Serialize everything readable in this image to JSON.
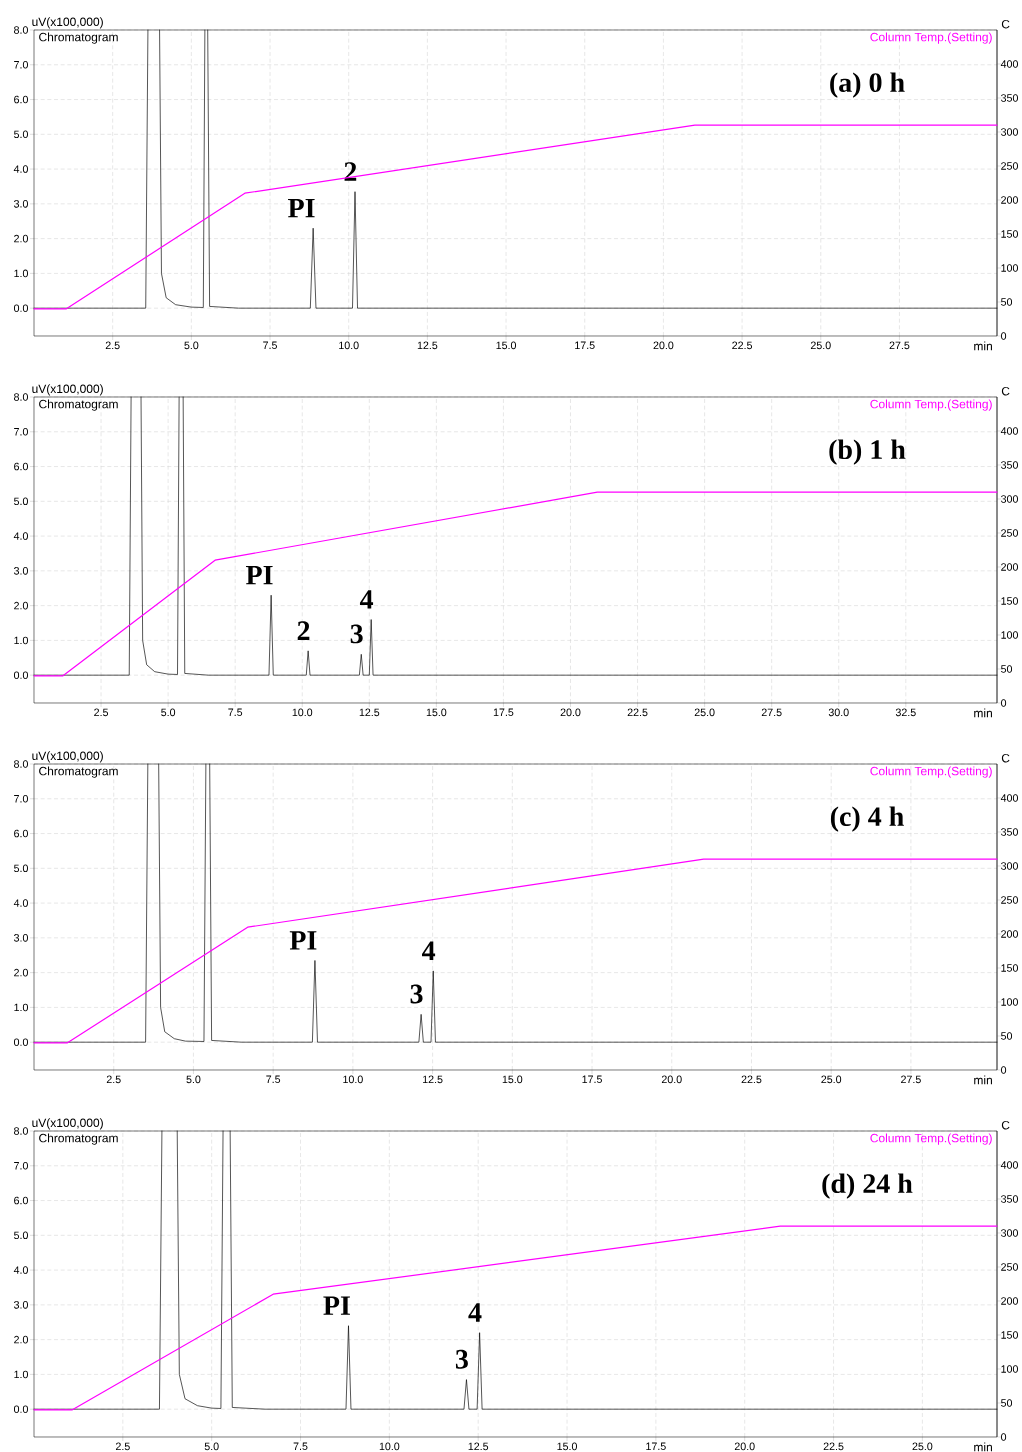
{
  "chart_data": [
    {
      "type": "line",
      "ylabel": "uV(x100,000)",
      "y2label": "C",
      "xlabel": "min",
      "annotations": [
        "(a) 0 h",
        {
          "text": "PI",
          "x": 8.87,
          "y": 2.3
        },
        {
          "text": "2",
          "x": 10.2,
          "y": 3.35
        }
      ],
      "xlim": [
        0,
        30.6
      ],
      "ylim": [
        -0.8,
        8.0
      ],
      "y2lim": [
        0,
        450
      ],
      "grid": true,
      "xticks": [
        2.5,
        {
          "value": 5,
          "label": "5.0"
        },
        7.5,
        {
          "value": 10,
          "label": "10.0"
        },
        12.5,
        {
          "value": 15,
          "label": "15.0"
        },
        17.5,
        {
          "value": 20,
          "label": "20.0"
        },
        22.5,
        {
          "value": 25,
          "label": "25.0"
        },
        27.5
      ],
      "yticks": [
        {
          "value": 0,
          "label": "0.0"
        },
        {
          "value": 1,
          "label": "1.0"
        },
        {
          "value": 2,
          "label": "2.0"
        },
        {
          "value": 3,
          "label": "3.0"
        },
        {
          "value": 4,
          "label": "4.0"
        },
        {
          "value": 5,
          "label": "5.0"
        },
        {
          "value": 6,
          "label": "6.0"
        },
        {
          "value": 7,
          "label": "7.0"
        },
        {
          "value": 8,
          "label": "8.0"
        }
      ],
      "y2ticks": [
        0,
        50,
        100,
        150,
        200,
        250,
        300,
        350,
        400
      ],
      "series": [
        {
          "name": "Chromatogram",
          "color": "#000000",
          "x": [
            0,
            3.55,
            3.62,
            3.8,
            3.99,
            4.05,
            4.2,
            4.5,
            5.0,
            5.38,
            5.43,
            5.48,
            5.52,
            5.58,
            6.5,
            8.78,
            8.87,
            8.96,
            10.12,
            10.2,
            10.28,
            30.6
          ],
          "values": [
            0,
            0,
            8.0,
            null,
            8.0,
            1.0,
            0.3,
            0.1,
            0.03,
            0.02,
            8.0,
            null,
            8.0,
            0.05,
            0,
            0,
            2.3,
            0,
            0,
            3.35,
            0,
            0
          ]
        },
        {
          "name": "Column Temp.(Setting)",
          "color": "#ff00ff",
          "axis": "y2",
          "x": [
            0,
            1.03,
            6.7,
            21.0,
            30.6
          ],
          "values": [
            40,
            40,
            210,
            310,
            310
          ]
        }
      ]
    },
    {
      "type": "line",
      "ylabel": "uV(x100,000)",
      "y2label": "C",
      "xlabel": "min",
      "annotations": [
        "(b) 1 h",
        {
          "text": "PI",
          "x": 8.84,
          "y": 2.3
        },
        {
          "text": "2",
          "x": 10.22,
          "y": 0.7
        },
        {
          "text": "3",
          "x": 12.2,
          "y": 0.6
        },
        {
          "text": "4",
          "x": 12.57,
          "y": 1.6
        }
      ],
      "xlim": [
        0,
        35.9
      ],
      "ylim": [
        -0.8,
        8.0
      ],
      "y2lim": [
        0,
        450
      ],
      "grid": true,
      "xticks": [
        2.5,
        {
          "value": 5,
          "label": "5.0"
        },
        7.5,
        {
          "value": 10,
          "label": "10.0"
        },
        12.5,
        {
          "value": 15,
          "label": "15.0"
        },
        17.5,
        {
          "value": 20,
          "label": "20.0"
        },
        22.5,
        {
          "value": 25,
          "label": "25.0"
        },
        27.5,
        {
          "value": 30,
          "label": "30.0"
        },
        32.5
      ],
      "yticks": [
        {
          "value": 0,
          "label": "0.0"
        },
        {
          "value": 1,
          "label": "1.0"
        },
        {
          "value": 2,
          "label": "2.0"
        },
        {
          "value": 3,
          "label": "3.0"
        },
        {
          "value": 4,
          "label": "4.0"
        },
        {
          "value": 5,
          "label": "5.0"
        },
        {
          "value": 6,
          "label": "6.0"
        },
        {
          "value": 7,
          "label": "7.0"
        },
        {
          "value": 8,
          "label": "8.0"
        }
      ],
      "y2ticks": [
        0,
        50,
        100,
        150,
        200,
        250,
        300,
        350,
        400
      ],
      "series": [
        {
          "name": "Chromatogram",
          "color": "#000000",
          "x": [
            0,
            3.55,
            3.62,
            3.8,
            3.99,
            4.05,
            4.2,
            4.5,
            5.0,
            5.35,
            5.41,
            5.48,
            5.56,
            5.62,
            6.5,
            8.76,
            8.84,
            8.92,
            10.15,
            10.22,
            10.29,
            12.13,
            12.2,
            12.27,
            12.5,
            12.57,
            12.64,
            35.9
          ],
          "values": [
            0,
            0,
            8.0,
            null,
            8.0,
            1.0,
            0.3,
            0.1,
            0.03,
            0.02,
            8.0,
            null,
            8.0,
            0.05,
            0,
            0,
            2.3,
            0,
            0,
            0.7,
            0,
            0,
            0.6,
            0,
            0,
            1.6,
            0,
            0
          ]
        },
        {
          "name": "Column Temp.(Setting)",
          "color": "#ff00ff",
          "axis": "y2",
          "x": [
            0,
            1.08,
            6.75,
            21.0,
            35.9
          ],
          "values": [
            40,
            40,
            210,
            310,
            310
          ]
        }
      ]
    },
    {
      "type": "line",
      "ylabel": "uV(x100,000)",
      "y2label": "C",
      "xlabel": "min",
      "annotations": [
        "(c) 4 h",
        {
          "text": "PI",
          "x": 8.81,
          "y": 2.35
        },
        {
          "text": "3",
          "x": 12.14,
          "y": 0.8
        },
        {
          "text": "4",
          "x": 12.52,
          "y": 2.05
        }
      ],
      "xlim": [
        0,
        30.2
      ],
      "ylim": [
        -0.8,
        8.0
      ],
      "y2lim": [
        0,
        450
      ],
      "grid": true,
      "xticks": [
        2.5,
        {
          "value": 5,
          "label": "5.0"
        },
        7.5,
        {
          "value": 10,
          "label": "10.0"
        },
        12.5,
        {
          "value": 15,
          "label": "15.0"
        },
        17.5,
        {
          "value": 20,
          "label": "20.0"
        },
        22.5,
        {
          "value": 25,
          "label": "25.0"
        },
        27.5
      ],
      "yticks": [
        {
          "value": 0,
          "label": "0.0"
        },
        {
          "value": 1,
          "label": "1.0"
        },
        {
          "value": 2,
          "label": "2.0"
        },
        {
          "value": 3,
          "label": "3.0"
        },
        {
          "value": 4,
          "label": "4.0"
        },
        {
          "value": 5,
          "label": "5.0"
        },
        {
          "value": 6,
          "label": "6.0"
        },
        {
          "value": 7,
          "label": "7.0"
        },
        {
          "value": 8,
          "label": "8.0"
        }
      ],
      "y2ticks": [
        0,
        50,
        100,
        150,
        200,
        250,
        300,
        350,
        400
      ],
      "series": [
        {
          "name": "Chromatogram",
          "color": "#000000",
          "x": [
            0,
            3.5,
            3.57,
            3.75,
            3.91,
            3.97,
            4.1,
            4.4,
            4.75,
            5.33,
            5.39,
            5.45,
            5.51,
            5.57,
            6.5,
            8.73,
            8.81,
            8.89,
            12.07,
            12.14,
            12.21,
            12.45,
            12.52,
            12.59,
            30.2
          ],
          "values": [
            0,
            0,
            8.0,
            null,
            8.0,
            1.0,
            0.3,
            0.1,
            0.03,
            0.02,
            8.0,
            null,
            8.0,
            0.05,
            0,
            0,
            2.35,
            0,
            0,
            0.8,
            0,
            0,
            2.05,
            0,
            0
          ]
        },
        {
          "name": "Column Temp.(Setting)",
          "color": "#ff00ff",
          "axis": "y2",
          "x": [
            0,
            1.05,
            6.7,
            21.0,
            30.2
          ],
          "values": [
            40,
            40,
            210,
            310,
            310
          ]
        }
      ]
    },
    {
      "type": "line",
      "ylabel": "uV(x100,000)",
      "y2label": "C",
      "xlabel": "min",
      "annotations": [
        "(d) 24 h",
        {
          "text": "PI",
          "x": 8.85,
          "y": 2.4
        },
        {
          "text": "3",
          "x": 12.17,
          "y": 0.85
        },
        {
          "text": "4",
          "x": 12.54,
          "y": 2.2
        }
      ],
      "xlim": [
        0,
        27.1
      ],
      "ylim": [
        -0.8,
        8.0
      ],
      "y2lim": [
        0,
        450
      ],
      "grid": true,
      "xticks": [
        2.5,
        {
          "value": 5,
          "label": "5.0"
        },
        7.5,
        {
          "value": 10,
          "label": "10.0"
        },
        12.5,
        {
          "value": 15,
          "label": "15.0"
        },
        17.5,
        {
          "value": 20,
          "label": "20.0"
        },
        22.5,
        {
          "value": 25,
          "label": "25.0"
        }
      ],
      "yticks": [
        {
          "value": 0,
          "label": "0.0"
        },
        {
          "value": 1,
          "label": "1.0"
        },
        {
          "value": 2,
          "label": "2.0"
        },
        {
          "value": 3,
          "label": "3.0"
        },
        {
          "value": 4,
          "label": "4.0"
        },
        {
          "value": 5,
          "label": "5.0"
        },
        {
          "value": 6,
          "label": "6.0"
        },
        {
          "value": 7,
          "label": "7.0"
        },
        {
          "value": 8,
          "label": "8.0"
        }
      ],
      "y2ticks": [
        0,
        50,
        100,
        150,
        200,
        250,
        300,
        350,
        400
      ],
      "series": [
        {
          "name": "Chromatogram",
          "color": "#000000",
          "x": [
            0,
            3.53,
            3.6,
            3.8,
            4.03,
            4.09,
            4.25,
            4.6,
            5.0,
            5.26,
            5.32,
            5.42,
            5.52,
            5.58,
            6.5,
            8.78,
            8.85,
            8.92,
            12.1,
            12.17,
            12.24,
            12.47,
            12.54,
            12.61,
            27.1
          ],
          "values": [
            0,
            0,
            8.0,
            null,
            8.0,
            1.0,
            0.3,
            0.1,
            0.03,
            0.02,
            8.0,
            null,
            8.0,
            0.05,
            0,
            0,
            2.4,
            0,
            0,
            0.85,
            0,
            0,
            2.2,
            0,
            0
          ]
        },
        {
          "name": "Column Temp.(Setting)",
          "color": "#ff00ff",
          "axis": "y2",
          "x": [
            0,
            1.08,
            6.73,
            21.0,
            27.1
          ],
          "values": [
            40,
            40,
            210,
            310,
            310
          ]
        }
      ]
    }
  ]
}
